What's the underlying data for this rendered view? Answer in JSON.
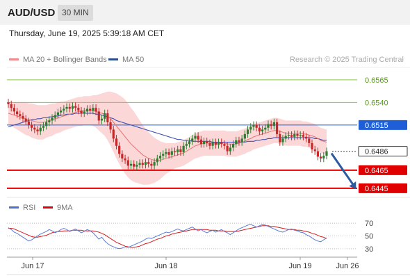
{
  "header": {
    "symbol": "AUD/USD",
    "interval": "30 MIN"
  },
  "datetime": "Thursday, June 19, 2025 5:39:18 AM CET",
  "legend": {
    "bollinger": "MA 20 + Bollinger Bands",
    "ma50": "MA 50",
    "rsi": "RSI",
    "rsi_ma": "9MA"
  },
  "copyright": "Research © 2025 Trading Central",
  "colors": {
    "bull": "#2e7d32",
    "bear": "#c62828",
    "bollinger_fill": "#f9c9cb",
    "ma20": "#e57373",
    "ma50": "#3f51b5",
    "resistance": "#8bc34a",
    "support": "#e00000",
    "pivot": "#1e5fd8",
    "arrow": "#2c5aa0",
    "rsi": "#5b7bd5",
    "rsi_ma": "#d81b1b"
  },
  "chart_data": [
    {
      "type": "candlestick",
      "ylim": [
        0.6438,
        0.6578
      ],
      "x_ticks": [
        "Jun 17",
        "Jun 18",
        "Jun 19",
        "Jun 26"
      ],
      "levels": [
        {
          "value": 0.6565,
          "label": "0.6565",
          "kind": "resistance"
        },
        {
          "value": 0.654,
          "label": "0.6540",
          "kind": "resistance"
        },
        {
          "value": 0.6515,
          "label": "0.6515",
          "kind": "pivot"
        },
        {
          "value": 0.6486,
          "label": "0.6486",
          "kind": "last"
        },
        {
          "value": 0.6465,
          "label": "0.6465",
          "kind": "support"
        },
        {
          "value": 0.6445,
          "label": "0.6445",
          "kind": "support"
        }
      ],
      "closes": [
        0.6538,
        0.6534,
        0.653,
        0.6527,
        0.6525,
        0.6522,
        0.6519,
        0.6515,
        0.6512,
        0.651,
        0.6508,
        0.6512,
        0.6514,
        0.6518,
        0.652,
        0.6523,
        0.6526,
        0.6529,
        0.6531,
        0.6533,
        0.6535,
        0.6533,
        0.6536,
        0.6534,
        0.6531,
        0.6528,
        0.653,
        0.6533,
        0.6531,
        0.6534,
        0.653,
        0.652,
        0.6522,
        0.6528,
        0.6518,
        0.651,
        0.65,
        0.6492,
        0.6483,
        0.6478,
        0.6476,
        0.647,
        0.6472,
        0.6469,
        0.6471,
        0.6473,
        0.6471,
        0.6474,
        0.6472,
        0.647,
        0.6474,
        0.6478,
        0.6481,
        0.6483,
        0.6485,
        0.6482,
        0.6486,
        0.6485,
        0.6488,
        0.6485,
        0.6492,
        0.6494,
        0.6497,
        0.65,
        0.6503,
        0.6499,
        0.6494,
        0.6497,
        0.6495,
        0.6492,
        0.6496,
        0.6493,
        0.6496,
        0.6494,
        0.6492,
        0.6486,
        0.649,
        0.6494,
        0.6498,
        0.6496,
        0.65,
        0.6505,
        0.651,
        0.6513,
        0.6515,
        0.6512,
        0.6508,
        0.651,
        0.6512,
        0.6516,
        0.6514,
        0.6518,
        0.6505,
        0.6496,
        0.65,
        0.6503,
        0.6504,
        0.6502,
        0.6505,
        0.6503,
        0.6504,
        0.6502,
        0.65,
        0.6495,
        0.6488,
        0.6486,
        0.648,
        0.6478,
        0.6481,
        0.6486
      ],
      "opens": [
        0.654,
        0.6538,
        0.6534,
        0.653,
        0.6527,
        0.6525,
        0.6522,
        0.6519,
        0.6515,
        0.6512,
        0.651,
        0.6508,
        0.6512,
        0.6514,
        0.6518,
        0.652,
        0.6523,
        0.6526,
        0.6529,
        0.6531,
        0.6533,
        0.6535,
        0.6533,
        0.6536,
        0.6534,
        0.6531,
        0.6528,
        0.653,
        0.6533,
        0.6531,
        0.6534,
        0.653,
        0.652,
        0.6522,
        0.6528,
        0.6518,
        0.651,
        0.65,
        0.6492,
        0.6483,
        0.6478,
        0.6476,
        0.647,
        0.6472,
        0.6469,
        0.6471,
        0.6473,
        0.6471,
        0.6474,
        0.6472,
        0.647,
        0.6474,
        0.6478,
        0.6481,
        0.6483,
        0.6485,
        0.6482,
        0.6486,
        0.6485,
        0.6488,
        0.6485,
        0.6492,
        0.6494,
        0.6497,
        0.65,
        0.6503,
        0.6499,
        0.6494,
        0.6497,
        0.6495,
        0.6492,
        0.6496,
        0.6493,
        0.6496,
        0.6494,
        0.6492,
        0.6486,
        0.649,
        0.6494,
        0.6498,
        0.6496,
        0.65,
        0.6505,
        0.651,
        0.6513,
        0.6515,
        0.6512,
        0.6508,
        0.651,
        0.6512,
        0.6516,
        0.6514,
        0.6518,
        0.6505,
        0.6496,
        0.65,
        0.6503,
        0.6504,
        0.6502,
        0.6505,
        0.6503,
        0.6504,
        0.6502,
        0.65,
        0.6495,
        0.6488,
        0.6486,
        0.648,
        0.6478,
        0.6481
      ],
      "ma20": [
        0.6528,
        0.6527,
        0.6526,
        0.6525,
        0.6524,
        0.6523,
        0.6522,
        0.6521,
        0.652,
        0.6519,
        0.6518,
        0.6518,
        0.6518,
        0.6519,
        0.652,
        0.6521,
        0.6522,
        0.6523,
        0.6524,
        0.6525,
        0.6526,
        0.6527,
        0.6528,
        0.6529,
        0.653,
        0.653,
        0.6531,
        0.6531,
        0.6531,
        0.6531,
        0.653,
        0.6529,
        0.6528,
        0.6527,
        0.6525,
        0.6522,
        0.6518,
        0.6514,
        0.651,
        0.6506,
        0.6502,
        0.6498,
        0.6494,
        0.6491,
        0.6488,
        0.6485,
        0.6482,
        0.648,
        0.6478,
        0.6477,
        0.6476,
        0.6476,
        0.6476,
        0.6477,
        0.6478,
        0.6479,
        0.648,
        0.6481,
        0.6482,
        0.6483,
        0.6484,
        0.6486,
        0.6488,
        0.649,
        0.6492,
        0.6493,
        0.6494,
        0.6495,
        0.6495,
        0.6495,
        0.6495,
        0.6495,
        0.6495,
        0.6495,
        0.6495,
        0.6494,
        0.6494,
        0.6494,
        0.6494,
        0.6495,
        0.6496,
        0.6497,
        0.6499,
        0.65,
        0.6502,
        0.6503,
        0.6504,
        0.6505,
        0.6506,
        0.6507,
        0.6508,
        0.6509,
        0.6509,
        0.6508,
        0.6507,
        0.6506,
        0.6506,
        0.6506,
        0.6506,
        0.6506,
        0.6506,
        0.6505,
        0.6505,
        0.6504,
        0.6503,
        0.6502,
        0.65,
        0.6498,
        0.6497,
        0.6496
      ],
      "ma50": [
        0.6513,
        0.6514,
        0.6515,
        0.6516,
        0.6517,
        0.6518,
        0.6519,
        0.652,
        0.6521,
        0.6521,
        0.6522,
        0.6522,
        0.6523,
        0.6523,
        0.6524,
        0.6524,
        0.6525,
        0.6525,
        0.6526,
        0.6526,
        0.6527,
        0.6527,
        0.6527,
        0.6528,
        0.6528,
        0.6528,
        0.6528,
        0.6528,
        0.6528,
        0.6528,
        0.6527,
        0.6527,
        0.6526,
        0.6525,
        0.6524,
        0.6523,
        0.6522,
        0.652,
        0.6519,
        0.6518,
        0.6517,
        0.6516,
        0.6515,
        0.6514,
        0.6513,
        0.6512,
        0.6511,
        0.651,
        0.6509,
        0.6508,
        0.6507,
        0.6506,
        0.6505,
        0.6504,
        0.6503,
        0.6502,
        0.6501,
        0.65,
        0.6499,
        0.6499,
        0.6498,
        0.6498,
        0.6498,
        0.6497,
        0.6497,
        0.6497,
        0.6497,
        0.6497,
        0.6497,
        0.6497,
        0.6496,
        0.6496,
        0.6496,
        0.6496,
        0.6496,
        0.6496,
        0.6496,
        0.6496,
        0.6496,
        0.6496,
        0.6496,
        0.6496,
        0.6497,
        0.6497,
        0.6497,
        0.6498,
        0.6498,
        0.6499,
        0.6499,
        0.65,
        0.65,
        0.6501,
        0.6501,
        0.6501,
        0.6501,
        0.6501,
        0.6501,
        0.6501,
        0.6501,
        0.6501,
        0.6501,
        0.6501,
        0.6501,
        0.6501,
        0.6501,
        0.65,
        0.65,
        0.6499,
        0.6498,
        0.6498
      ],
      "band_width": [
        0.0012,
        0.0013,
        0.0014,
        0.0015,
        0.0016,
        0.0017,
        0.0018,
        0.0018,
        0.0019,
        0.0019,
        0.0019,
        0.0019,
        0.0019,
        0.0018,
        0.0018,
        0.0018,
        0.0017,
        0.0017,
        0.0017,
        0.0016,
        0.0016,
        0.0016,
        0.0016,
        0.0016,
        0.0016,
        0.0016,
        0.0016,
        0.0016,
        0.0016,
        0.0017,
        0.0018,
        0.002,
        0.0022,
        0.0024,
        0.0027,
        0.003,
        0.0033,
        0.0036,
        0.0038,
        0.004,
        0.0041,
        0.0041,
        0.004,
        0.0039,
        0.0037,
        0.0035,
        0.0033,
        0.0031,
        0.0029,
        0.0027,
        0.0025,
        0.0023,
        0.0021,
        0.0019,
        0.0017,
        0.0016,
        0.0015,
        0.0014,
        0.0014,
        0.0014,
        0.0014,
        0.0014,
        0.0014,
        0.0014,
        0.0014,
        0.0014,
        0.0014,
        0.0014,
        0.0014,
        0.0014,
        0.0014,
        0.0014,
        0.0014,
        0.0014,
        0.0014,
        0.0014,
        0.0014,
        0.0014,
        0.0014,
        0.0014,
        0.0014,
        0.0014,
        0.0014,
        0.0014,
        0.0014,
        0.0014,
        0.0014,
        0.0014,
        0.0014,
        0.0014,
        0.0014,
        0.0014,
        0.0014,
        0.0014,
        0.0014,
        0.0014,
        0.0014,
        0.0014,
        0.0014,
        0.0014,
        0.0014,
        0.0014,
        0.0014,
        0.0014,
        0.0014,
        0.0014,
        0.0014,
        0.0014,
        0.0014,
        0.0014
      ]
    },
    {
      "type": "line",
      "ylim": [
        20,
        80
      ],
      "y_ticks": [
        70,
        50,
        30
      ],
      "series": [
        {
          "name": "RSI",
          "values": [
            63,
            60,
            56,
            54,
            51,
            48,
            45,
            42,
            44,
            47,
            50,
            53,
            55,
            57,
            60,
            58,
            55,
            57,
            60,
            62,
            60,
            57,
            59,
            61,
            58,
            55,
            57,
            60,
            58,
            55,
            50,
            45,
            48,
            42,
            38,
            35,
            33,
            31,
            30,
            31,
            33,
            32,
            34,
            36,
            38,
            40,
            42,
            45,
            47,
            46,
            48,
            50,
            52,
            54,
            56,
            55,
            57,
            59,
            61,
            59,
            58,
            60,
            62,
            64,
            61,
            58,
            60,
            57,
            55,
            57,
            59,
            56,
            58,
            60,
            57,
            55,
            52,
            55,
            58,
            61,
            63,
            65,
            67,
            68,
            66,
            64,
            66,
            68,
            67,
            65,
            63,
            61,
            59,
            57,
            56,
            58,
            60,
            61,
            59,
            58,
            56,
            55,
            52,
            50,
            47,
            44,
            42,
            41,
            44,
            47
          ]
        },
        {
          "name": "9MA",
          "values": [
            62,
            62,
            61,
            59,
            57,
            55,
            53,
            51,
            49,
            48,
            48,
            49,
            50,
            51,
            53,
            55,
            56,
            57,
            57,
            58,
            58,
            58,
            59,
            59,
            59,
            59,
            58,
            58,
            58,
            58,
            57,
            56,
            54,
            52,
            49,
            46,
            43,
            40,
            38,
            36,
            34,
            33,
            32,
            32,
            33,
            34,
            36,
            38,
            39,
            41,
            43,
            45,
            46,
            48,
            50,
            51,
            53,
            54,
            55,
            56,
            57,
            58,
            59,
            60,
            60,
            60,
            60,
            60,
            60,
            59,
            59,
            59,
            58,
            58,
            58,
            57,
            57,
            57,
            57,
            58,
            59,
            60,
            61,
            62,
            63,
            64,
            65,
            66,
            66,
            66,
            65,
            65,
            64,
            63,
            62,
            61,
            60,
            60,
            60,
            59,
            59,
            58,
            57,
            56,
            54,
            53,
            51,
            49,
            48,
            46
          ]
        }
      ]
    }
  ]
}
